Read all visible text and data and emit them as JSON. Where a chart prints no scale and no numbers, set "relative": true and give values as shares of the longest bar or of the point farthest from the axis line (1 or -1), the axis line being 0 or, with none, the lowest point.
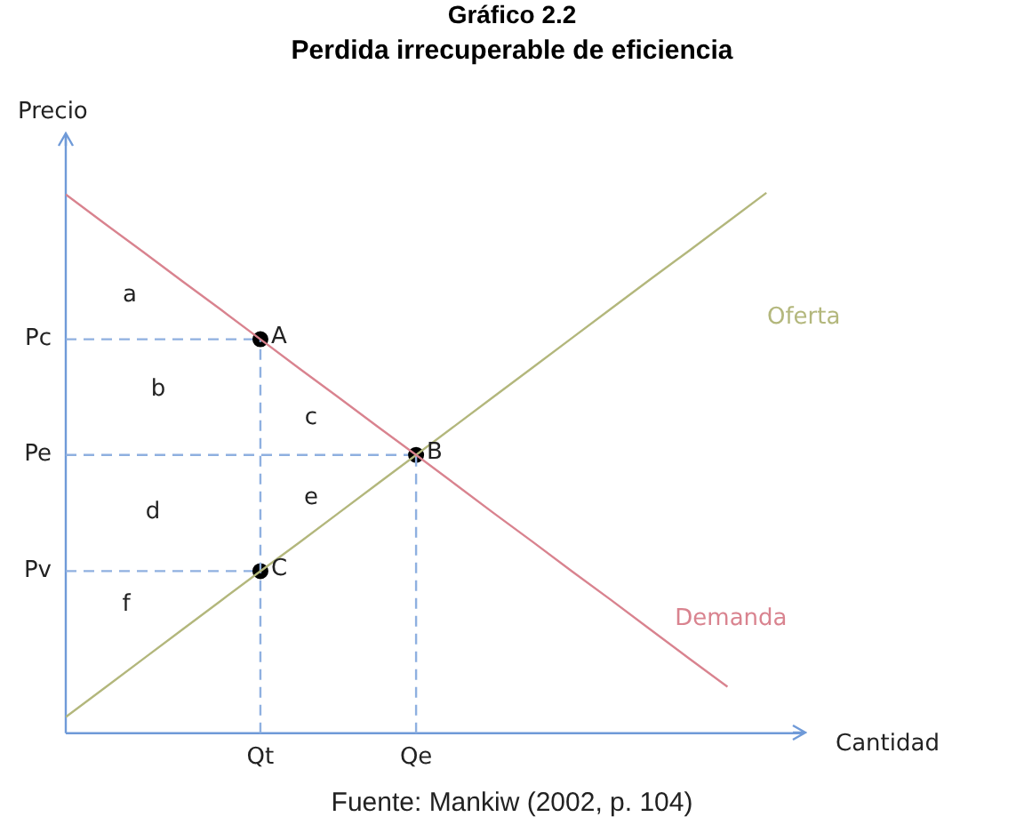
{
  "chart_data": {
    "type": "line",
    "title": "Gráfico 2.2",
    "subtitle": "Perdida irrecuperable de eficiencia",
    "xlabel": "Cantidad",
    "ylabel": "Precio",
    "relative": true,
    "categories": [
      null,
      null,
      null,
      null,
      null,
      "Qt",
      null,
      null,
      null,
      "Qe",
      null,
      null,
      null,
      null,
      null,
      null,
      null,
      null,
      null,
      null
    ],
    "series": [
      {
        "name": "Demanda",
        "type": "line",
        "color": "#d9838f",
        "values": [
          0.997,
          0.943,
          0.89,
          0.836,
          0.783,
          0.729,
          0.675,
          0.622,
          0.568,
          0.515,
          0.461,
          0.407,
          0.354,
          0.3,
          0.247,
          0.193,
          0.139,
          0.086,
          null,
          null
        ]
      },
      {
        "name": "Oferta",
        "type": "line",
        "color": "#b3b77c",
        "values": [
          0.03,
          0.084,
          0.138,
          0.192,
          0.246,
          0.3,
          0.353,
          0.407,
          0.461,
          0.515,
          0.569,
          0.623,
          0.677,
          0.731,
          0.785,
          0.839,
          0.892,
          0.946,
          1.0,
          null
        ]
      },
      {
        "type": "line",
        "color": "#8fb0e0",
        "line_style": "dashed",
        "x": [
          "Qt",
          "Qt"
        ],
        "values": [
          0,
          0.729
        ]
      },
      {
        "type": "line",
        "color": "#8fb0e0",
        "line_style": "dashed",
        "x": [
          "Qe",
          "Qe"
        ],
        "values": [
          0,
          0.515
        ]
      },
      {
        "type": "scatter",
        "color": "#000000",
        "marker": "circle",
        "x": [
          "Qt",
          "Qe",
          "Qt"
        ],
        "values": [
          0.729,
          0.515,
          0.3
        ]
      }
    ],
    "ref_lines": [
      {
        "axis": "y",
        "value": 0.729,
        "label": "Pc",
        "color": "#8fb0e0",
        "line_style": "dashed"
      },
      {
        "axis": "y",
        "value": 0.515,
        "label": "Pe",
        "color": "#8fb0e0",
        "line_style": "dashed"
      },
      {
        "axis": "y",
        "value": 0.3,
        "label": "Pv",
        "color": "#8fb0e0",
        "line_style": "dashed"
      }
    ],
    "annotations": [
      {
        "text": "A",
        "x": "Qt",
        "y": 0.729
      },
      {
        "text": "B",
        "x": "Qe",
        "y": 0.515
      },
      {
        "text": "C",
        "x": "Qt",
        "y": 0.3
      },
      "a",
      "b",
      "c",
      "d",
      "e",
      "f",
      "Fuente: Mankiw (2002, p. 104)"
    ]
  }
}
